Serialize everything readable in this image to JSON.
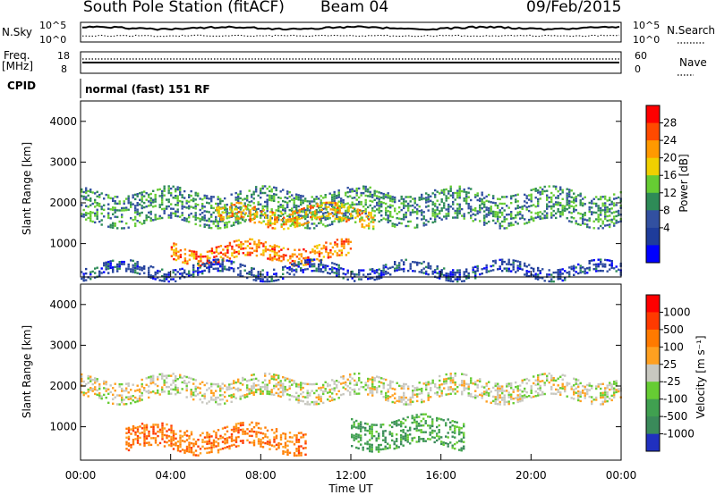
{
  "header": {
    "station": "South Pole Station (fitACF)",
    "beam": "Beam 04",
    "date": "09/Feb/2015"
  },
  "status_panel": {
    "nsky_label": "N.Sky",
    "nsky_ticks": [
      "10^5",
      "10^0"
    ],
    "nsearch_label": "N.Search",
    "nsearch_ticks": [
      "10^5",
      "10^0"
    ],
    "freq_label_1": "Freq.",
    "freq_label_2": "[MHz]",
    "freq_ticks": [
      "18",
      "8"
    ],
    "nave_label": "Nave",
    "nave_ticks": [
      "60",
      "0"
    ],
    "cpid_label": "CPID",
    "cpid_text": "normal (fast) 151 RF"
  },
  "chart_data": [
    {
      "type": "heatmap",
      "panel": "power",
      "ylabel": "Slant Range [km]",
      "ylim": [
        180,
        4500
      ],
      "yticks": [
        "1000",
        "2000",
        "3000",
        "4000"
      ],
      "colorbar": {
        "label": "Power [dB]",
        "ticks": [
          "28",
          "24",
          "20",
          "16",
          "12",
          "8",
          "4"
        ],
        "colors": [
          "#0000ff",
          "#1e3c9b",
          "#3250a0",
          "#2e8b57",
          "#66cc33",
          "#f0d000",
          "#ff9900",
          "#ff4a00",
          "#ff0000"
        ]
      },
      "bands": [
        {
          "t0": 0,
          "t1": 24,
          "r0": 1500,
          "r1": 2300,
          "level": 12
        },
        {
          "t0": 4,
          "t1": 12,
          "r0": 600,
          "r1": 1000,
          "level": 26
        },
        {
          "t0": 6,
          "t1": 13,
          "r0": 1500,
          "r1": 1900,
          "level": 22
        },
        {
          "t0": 0,
          "t1": 24,
          "r0": 200,
          "r1": 500,
          "level": 6
        }
      ]
    },
    {
      "type": "heatmap",
      "panel": "velocity",
      "ylabel": "Slant Range [km]",
      "xlabel": "Time UT",
      "ylim": [
        180,
        4500
      ],
      "yticks": [
        "1000",
        "2000",
        "3000",
        "4000"
      ],
      "xticks": [
        "00:00",
        "04:00",
        "08:00",
        "12:00",
        "16:00",
        "20:00",
        "00:00"
      ],
      "colorbar": {
        "label": "Velocity [m s⁻¹]",
        "ticks": [
          "1000",
          "500",
          "100",
          "25",
          "-25",
          "-100",
          "-500",
          "-1000"
        ],
        "colors": [
          "#2030c0",
          "#3a8a5a",
          "#40a050",
          "#66cc33",
          "#c8c8c0",
          "#ffa020",
          "#ff7a00",
          "#ff3a00",
          "#ff0000"
        ]
      },
      "bands": [
        {
          "t0": 0,
          "t1": 24,
          "r0": 1700,
          "r1": 2200,
          "level": 0
        },
        {
          "t0": 2,
          "t1": 10,
          "r0": 400,
          "r1": 1000,
          "level": -150
        },
        {
          "t0": 12,
          "t1": 17,
          "r0": 500,
          "r1": 1200,
          "level": 300
        }
      ]
    }
  ]
}
